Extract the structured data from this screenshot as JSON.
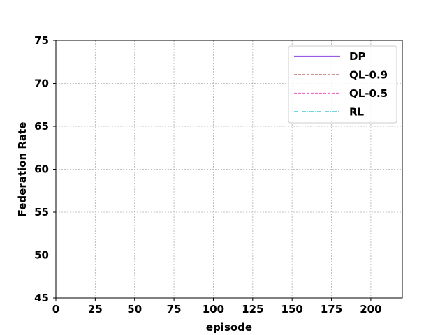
{
  "chart_data": {
    "type": "line",
    "title": "",
    "xlabel": "episode",
    "ylabel": "Federation Rate",
    "xlim": [
      0,
      220
    ],
    "ylim": [
      45,
      75
    ],
    "xticks": [
      0,
      25,
      50,
      75,
      100,
      125,
      150,
      175,
      200
    ],
    "yticks": [
      45,
      50,
      55,
      60,
      65,
      70,
      75
    ],
    "grid": true,
    "legend_position": "top-right",
    "series": [
      {
        "name": "DP",
        "color": "#9b59e8",
        "style": "solid",
        "x": [],
        "y": []
      },
      {
        "name": "QL-0.9",
        "color": "#b5504a",
        "style": "dashed",
        "x": [],
        "y": []
      },
      {
        "name": "QL-0.5",
        "color": "#f06cc8",
        "style": "dashed",
        "x": [],
        "y": []
      },
      {
        "name": "RL",
        "color": "#17becf",
        "style": "dashdot",
        "x": [],
        "y": []
      }
    ]
  }
}
